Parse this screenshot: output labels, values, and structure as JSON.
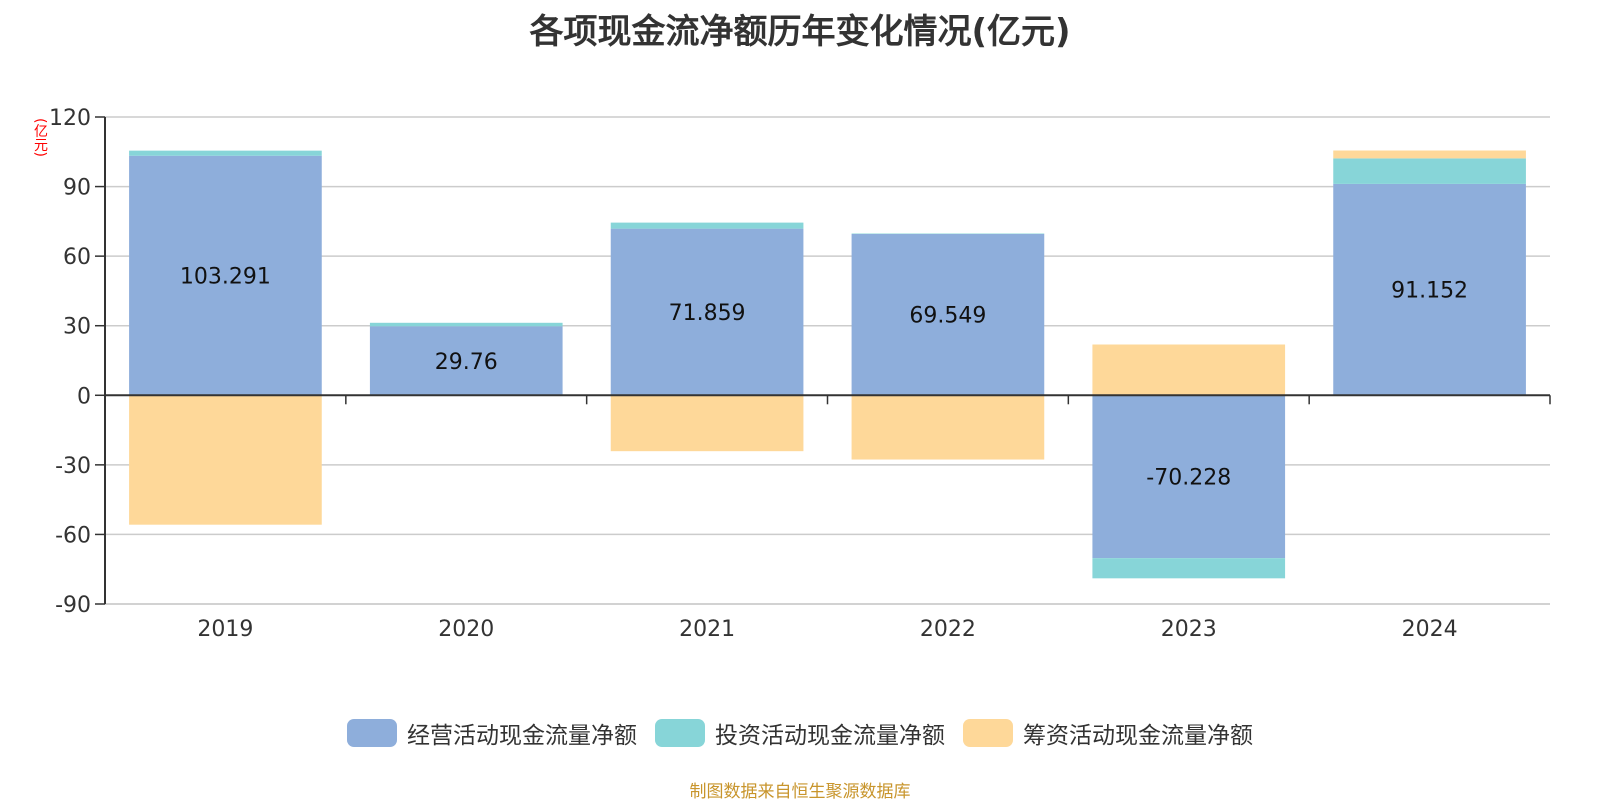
{
  "title": "各项现金流净额历年变化情况(亿元)",
  "unit_label": "(亿元)",
  "source": "制图数据来自恒生聚源数据库",
  "legend": [
    {
      "label": "经营活动现金流量净额",
      "color": "#8eaedb"
    },
    {
      "label": "投资活动现金流量净额",
      "color": "#87d5d8"
    },
    {
      "label": "筹资活动现金流量净额",
      "color": "#fed899"
    }
  ],
  "chart_data": {
    "type": "bar",
    "stacked": true,
    "title": "各项现金流净额历年变化情况(亿元)",
    "xlabel": "",
    "ylabel": "(亿元)",
    "categories": [
      "2019",
      "2020",
      "2021",
      "2022",
      "2023",
      "2024"
    ],
    "series": [
      {
        "name": "经营活动现金流量净额",
        "color": "#8eaedb",
        "values": [
          103.291,
          29.76,
          71.859,
          69.549,
          -70.228,
          91.152
        ],
        "labeled": true
      },
      {
        "name": "投资活动现金流量净额",
        "color": "#87d5d8",
        "values": [
          2.2,
          1.5,
          2.6,
          0.2,
          -8.7,
          11.0
        ],
        "labeled": false
      },
      {
        "name": "筹资活动现金流量净额",
        "color": "#fed899",
        "values": [
          -55.8,
          -0.3,
          -24.1,
          -27.7,
          21.9,
          3.4
        ],
        "labeled": false
      }
    ],
    "ylim": [
      -90,
      120
    ],
    "yticks": [
      120,
      90,
      60,
      30,
      0,
      -30,
      -60,
      -90
    ],
    "grid": true,
    "legend_position": "bottom"
  }
}
